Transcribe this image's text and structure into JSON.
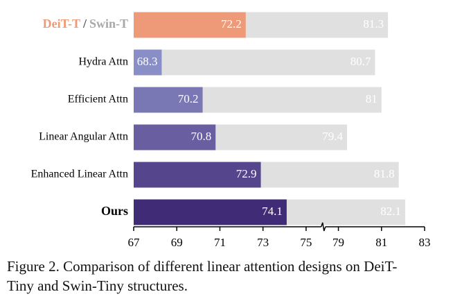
{
  "chart_data": {
    "type": "bar",
    "categories": [
      null,
      "Hydra Attn",
      "Efficient Attn",
      "Linear Angular Attn",
      "Enhanced Linear Attn",
      "Ours"
    ],
    "category_separator": "/",
    "bold_category": 5,
    "series": [
      {
        "name": "DeiT-T",
        "color": "#ee9a78",
        "colors": [
          "#ee9a78",
          "#8a8ec6",
          "#7a78b4",
          "#685ea0",
          "#55458c",
          "#402b76"
        ],
        "values": [
          72.2,
          68.3,
          70.2,
          70.8,
          72.9,
          74.1
        ]
      },
      {
        "name": "Swin-T",
        "color": "#e0e0e0",
        "label_color": "#a8a8a8",
        "values": [
          81.3,
          80.7,
          81.0,
          79.4,
          81.8,
          82.1
        ]
      }
    ],
    "xlim": [
      67,
      83
    ],
    "xbreak": [
      75.8,
      78.3
    ],
    "xticks": [
      67,
      69,
      71,
      73,
      75,
      79,
      81,
      83
    ],
    "caption": [
      "Figure 2. Comparison of different linear attention designs on DeiT-",
      "Tiny and Swin-Tiny structures."
    ]
  }
}
